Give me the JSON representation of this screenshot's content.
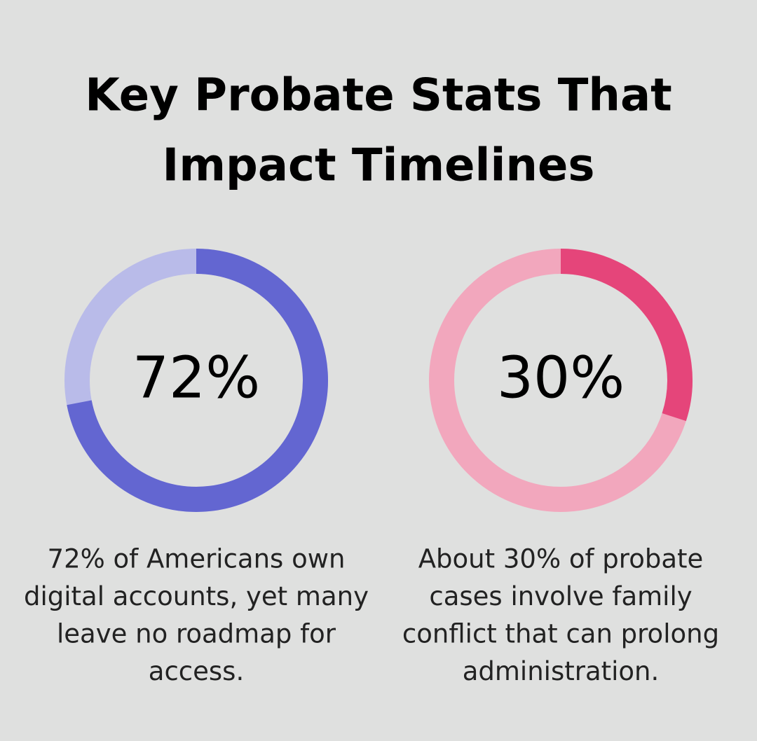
{
  "title": [
    "Key Probate Stats That",
    "Impact Timelines"
  ],
  "chart_data": [
    {
      "type": "donut",
      "values": [
        72
      ],
      "value_labels": [
        "72%"
      ],
      "color": "#6366d1",
      "track_color": "#b9bbe9",
      "caption": [
        "72% of Americans own",
        "digital accounts, yet many",
        "leave no roadmap for",
        "access."
      ]
    },
    {
      "type": "donut",
      "values": [
        30
      ],
      "value_labels": [
        "30%"
      ],
      "color": "#e5457a",
      "track_color": "#f2a7bd",
      "caption": [
        "About 30% of probate",
        "cases involve family",
        "conflict that can prolong",
        "administration."
      ]
    }
  ]
}
